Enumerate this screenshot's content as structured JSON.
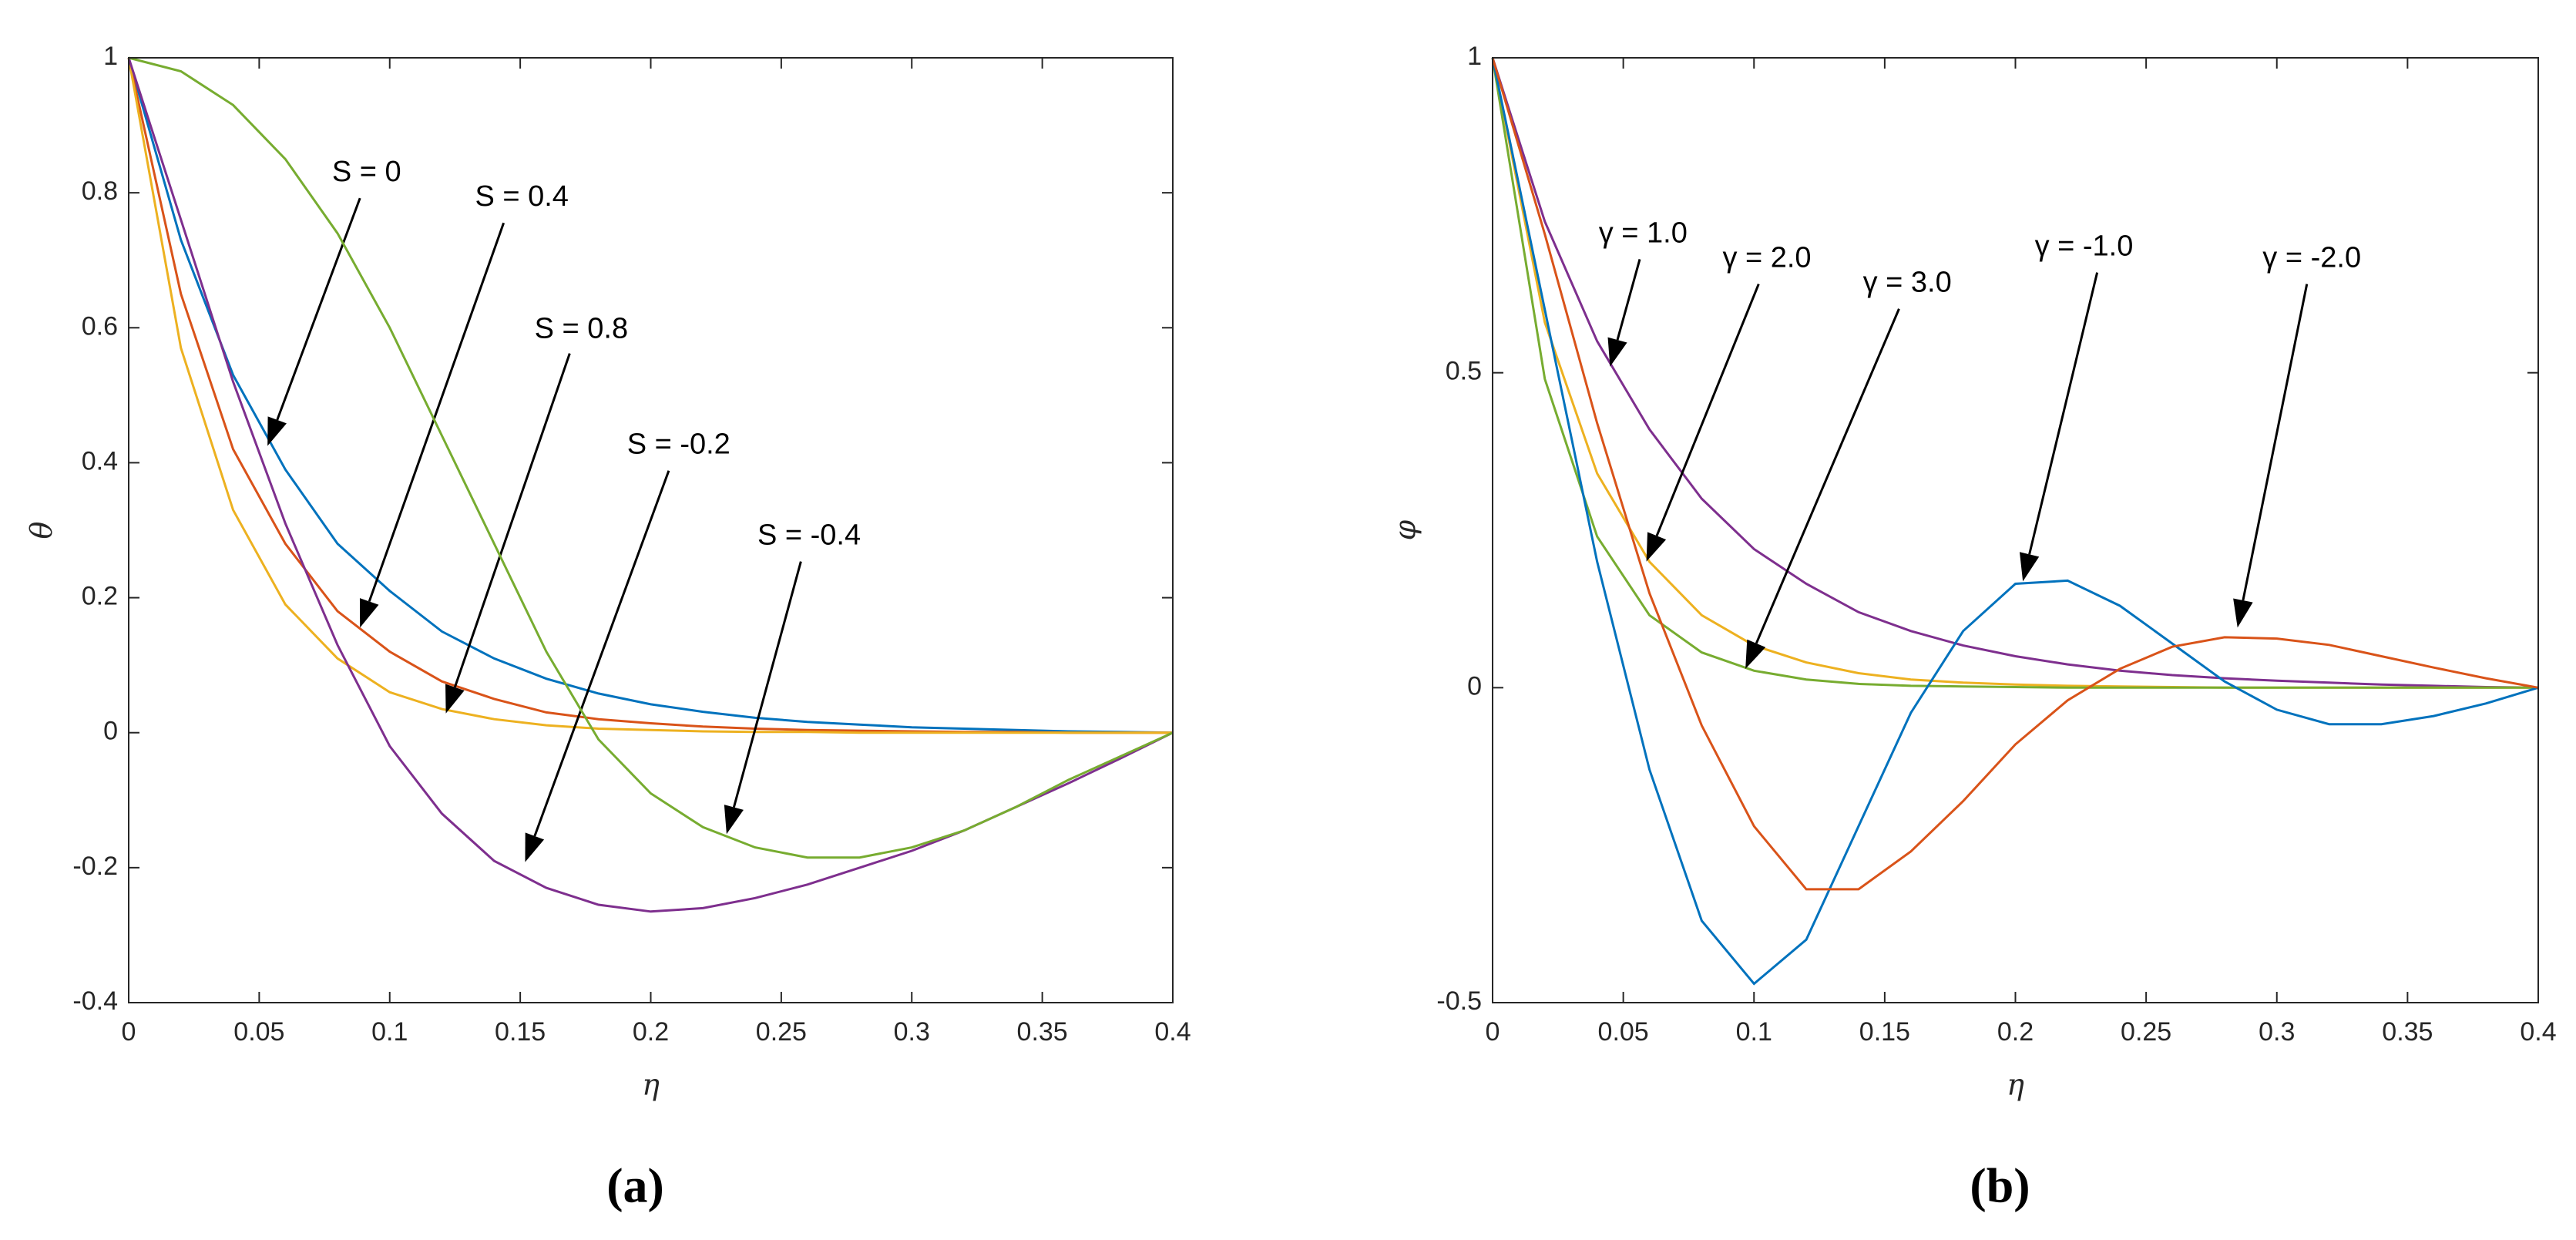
{
  "chart_data": [
    {
      "type": "line",
      "caption": "(a)",
      "xlabel": "η",
      "ylabel": "θ",
      "x": [
        0,
        0.02,
        0.04,
        0.06,
        0.08,
        0.1,
        0.12,
        0.14,
        0.16,
        0.18,
        0.2,
        0.22,
        0.24,
        0.26,
        0.28,
        0.3,
        0.32,
        0.34,
        0.36,
        0.38,
        0.4
      ],
      "xlim": [
        0,
        0.4
      ],
      "xticks": [
        0,
        0.05,
        0.1,
        0.15,
        0.2,
        0.25,
        0.3,
        0.35,
        0.4
      ],
      "ylim": [
        -0.4,
        1
      ],
      "yticks": [
        -0.4,
        -0.2,
        0,
        0.2,
        0.4,
        0.6,
        0.8,
        1
      ],
      "series": [
        {
          "name": "S = 0",
          "color": "#0072bd",
          "values": [
            1,
            0.73,
            0.53,
            0.39,
            0.28,
            0.21,
            0.15,
            0.11,
            0.08,
            0.058,
            0.042,
            0.031,
            0.022,
            0.016,
            0.012,
            0.008,
            0.006,
            0.004,
            0.002,
            0.001,
            0
          ]
        },
        {
          "name": "S = 0.4",
          "color": "#d95319",
          "values": [
            1,
            0.65,
            0.42,
            0.28,
            0.18,
            0.12,
            0.076,
            0.05,
            0.03,
            0.02,
            0.014,
            0.009,
            0.006,
            0.004,
            0.003,
            0.002,
            0.001,
            0.001,
            0,
            0,
            0
          ]
        },
        {
          "name": "S = 0.8",
          "color": "#edb120",
          "values": [
            1,
            0.57,
            0.33,
            0.19,
            0.11,
            0.06,
            0.035,
            0.02,
            0.011,
            0.006,
            0.004,
            0.002,
            0.001,
            0.001,
            0,
            0,
            0,
            0,
            0,
            0,
            0
          ]
        },
        {
          "name": "S = -0.2",
          "color": "#7e2f8e",
          "values": [
            1,
            0.76,
            0.52,
            0.31,
            0.13,
            -0.02,
            -0.12,
            -0.19,
            -0.23,
            -0.255,
            -0.265,
            -0.26,
            -0.245,
            -0.225,
            -0.2,
            -0.175,
            -0.145,
            -0.11,
            -0.075,
            -0.038,
            0
          ]
        },
        {
          "name": "S = -0.4",
          "color": "#77ac30",
          "values": [
            1,
            0.98,
            0.93,
            0.85,
            0.74,
            0.6,
            0.44,
            0.28,
            0.12,
            -0.01,
            -0.09,
            -0.14,
            -0.17,
            -0.185,
            -0.185,
            -0.17,
            -0.145,
            -0.11,
            -0.07,
            -0.035,
            0
          ]
        }
      ]
    },
    {
      "type": "line",
      "caption": "(b)",
      "xlabel": "η",
      "ylabel": "φ",
      "x": [
        0,
        0.02,
        0.04,
        0.06,
        0.08,
        0.1,
        0.12,
        0.14,
        0.16,
        0.18,
        0.2,
        0.22,
        0.24,
        0.26,
        0.28,
        0.3,
        0.32,
        0.34,
        0.36,
        0.38,
        0.4
      ],
      "xlim": [
        0,
        0.4
      ],
      "xticks": [
        0,
        0.05,
        0.1,
        0.15,
        0.2,
        0.25,
        0.3,
        0.35,
        0.4
      ],
      "ylim": [
        -0.5,
        1
      ],
      "yticks": [
        -0.5,
        0,
        0.5,
        1
      ],
      "series": [
        {
          "name": "γ = 1.0",
          "color": "#7e2f8e",
          "values": [
            1,
            0.74,
            0.55,
            0.41,
            0.3,
            0.22,
            0.165,
            0.12,
            0.09,
            0.067,
            0.05,
            0.037,
            0.027,
            0.02,
            0.015,
            0.011,
            0.008,
            0.005,
            0.003,
            0.001,
            0
          ]
        },
        {
          "name": "γ = 2.0",
          "color": "#edb120",
          "values": [
            1,
            0.58,
            0.34,
            0.2,
            0.115,
            0.067,
            0.04,
            0.023,
            0.013,
            0.008,
            0.005,
            0.003,
            0.002,
            0.001,
            0,
            0,
            0,
            0,
            0,
            0,
            0
          ]
        },
        {
          "name": "γ = 3.0",
          "color": "#77ac30",
          "values": [
            1,
            0.49,
            0.24,
            0.115,
            0.056,
            0.027,
            0.013,
            0.006,
            0.003,
            0.002,
            0.001,
            0,
            0,
            0,
            0,
            0,
            0,
            0,
            0,
            0,
            0
          ]
        },
        {
          "name": "γ = -1.0",
          "color": "#0072bd",
          "values": [
            1,
            0.6,
            0.2,
            -0.13,
            -0.37,
            -0.47,
            -0.4,
            -0.22,
            -0.04,
            0.09,
            0.165,
            0.17,
            0.13,
            0.07,
            0.01,
            -0.035,
            -0.058,
            -0.058,
            -0.045,
            -0.025,
            0
          ]
        },
        {
          "name": "γ = -2.0",
          "color": "#d95319",
          "values": [
            1,
            0.72,
            0.42,
            0.15,
            -0.06,
            -0.22,
            -0.32,
            -0.32,
            -0.26,
            -0.18,
            -0.09,
            -0.02,
            0.03,
            0.065,
            0.08,
            0.078,
            0.068,
            0.05,
            0.032,
            0.015,
            0
          ]
        }
      ]
    }
  ]
}
